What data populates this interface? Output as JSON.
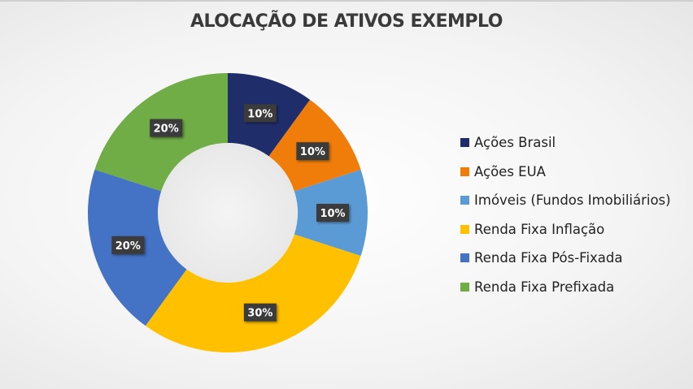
{
  "chart_data": {
    "type": "pie",
    "subtype": "donut",
    "title": "ALOCAÇÃO DE ATIVOS EXEMPLO",
    "categories": [
      "Ações Brasil",
      "Ações EUA",
      "Imóveis (Fundos Imobiliários)",
      "Renda Fixa Inflação",
      "Renda Fixa Pós-Fixada",
      "Renda Fixa Prefixada"
    ],
    "values": [
      10,
      10,
      10,
      30,
      20,
      20
    ],
    "labels": [
      "10%",
      "10%",
      "10%",
      "30%",
      "20%",
      "20%"
    ],
    "colors": [
      "#1f2d6b",
      "#f07d0a",
      "#5b9bd5",
      "#ffc000",
      "#4472c4",
      "#70ad47"
    ],
    "legend_position": "right",
    "unit": "%"
  },
  "legend": [
    {
      "label": "Ações Brasil",
      "color": "#1f2d6b"
    },
    {
      "label": "Ações EUA",
      "color": "#f07d0a"
    },
    {
      "label": "Imóveis (Fundos Imobiliários)",
      "color": "#5b9bd5"
    },
    {
      "label": "Renda Fixa Inflação",
      "color": "#ffc000"
    },
    {
      "label": "Renda Fixa Pós-Fixada",
      "color": "#4472c4"
    },
    {
      "label": "Renda Fixa Prefixada",
      "color": "#70ad47"
    }
  ]
}
